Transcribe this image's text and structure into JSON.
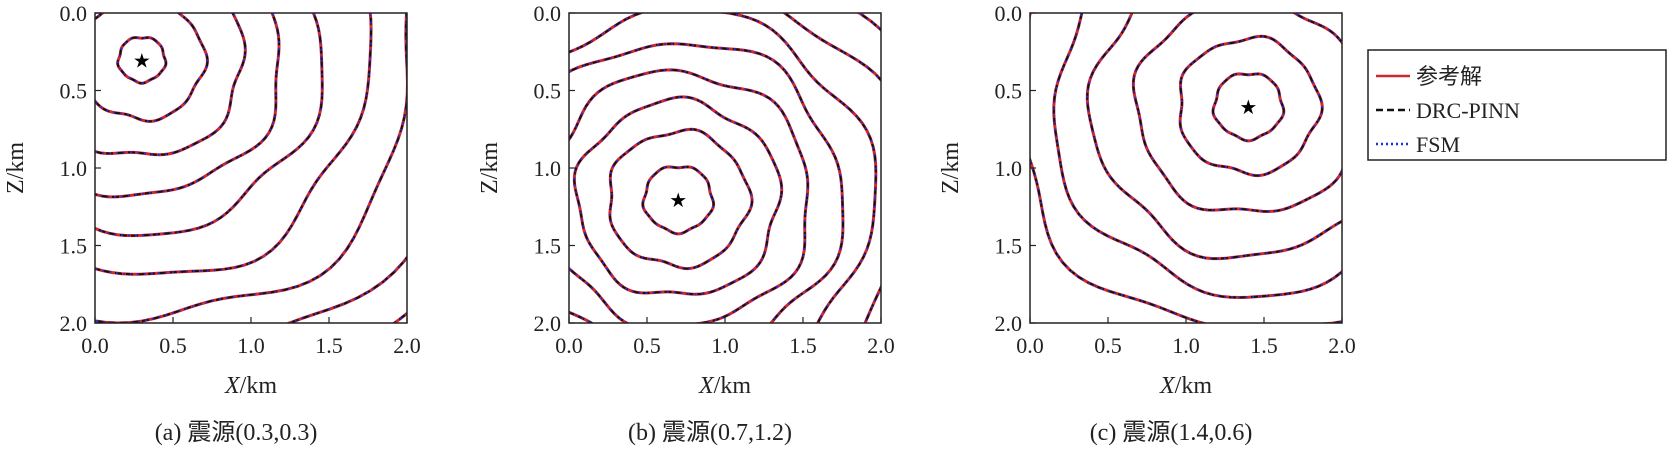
{
  "chart_data": [
    {
      "type": "contour",
      "caption": "(a) 震源(0.3,0.3)",
      "xlabel_italic": "X",
      "xlabel_unit": "/km",
      "ylabel": "Z/km",
      "xlim": [
        0.0,
        2.0
      ],
      "ylim": [
        0.0,
        2.0
      ],
      "y_inverted": true,
      "xticks": [
        "0.0",
        "0.5",
        "1.0",
        "1.5",
        "2.0"
      ],
      "yticks": [
        "0.0",
        "0.5",
        "1.0",
        "1.5",
        "2.0"
      ],
      "source": {
        "x": 0.3,
        "z": 0.3
      },
      "contour_radii": [
        0.15,
        0.4,
        0.65,
        0.9,
        1.15,
        1.45,
        1.75,
        2.1,
        2.45
      ],
      "series": [
        "参考解",
        "DRC-PINN",
        "FSM"
      ]
    },
    {
      "type": "contour",
      "caption": "(b) 震源(0.7,1.2)",
      "xlabel_italic": "X",
      "xlabel_unit": "/km",
      "ylabel": "Z/km",
      "xlim": [
        0.0,
        2.0
      ],
      "ylim": [
        0.0,
        2.0
      ],
      "y_inverted": true,
      "xticks": [
        "0.0",
        "0.5",
        "1.0",
        "1.5",
        "2.0"
      ],
      "yticks": [
        "0.0",
        "0.5",
        "1.0",
        "1.5",
        "2.0"
      ],
      "source": {
        "x": 0.7,
        "z": 1.2
      },
      "contour_radii": [
        0.22,
        0.45,
        0.65,
        0.85,
        1.05,
        1.25,
        1.45,
        1.65,
        1.85
      ],
      "series": [
        "参考解",
        "DRC-PINN",
        "FSM"
      ]
    },
    {
      "type": "contour",
      "caption": "(c) 震源(1.4,0.6)",
      "xlabel_italic": "X",
      "xlabel_unit": "/km",
      "ylabel": "Z/km",
      "xlim": [
        0.0,
        2.0
      ],
      "ylim": [
        0.0,
        2.0
      ],
      "y_inverted": true,
      "xticks": [
        "0.0",
        "0.5",
        "1.0",
        "1.5",
        "2.0"
      ],
      "yticks": [
        "0.0",
        "0.5",
        "1.0",
        "1.5",
        "2.0"
      ],
      "source": {
        "x": 1.4,
        "z": 0.6
      },
      "contour_radii": [
        0.22,
        0.45,
        0.72,
        1.0,
        1.25,
        1.5
      ],
      "series": [
        "参考解",
        "DRC-PINN",
        "FSM"
      ]
    }
  ],
  "legend": {
    "placement": "right",
    "items": [
      {
        "label": "参考解",
        "color": "#d62728",
        "style": "solid"
      },
      {
        "label": "DRC-PINN",
        "color": "#111111",
        "style": "dashed"
      },
      {
        "label": "FSM",
        "color": "#1f2fd6",
        "style": "dotted"
      }
    ]
  },
  "colors": {
    "reference": "#d62728",
    "drc_pinn": "#111111",
    "fsm": "#1f2fd6",
    "source_marker": "#000000"
  }
}
